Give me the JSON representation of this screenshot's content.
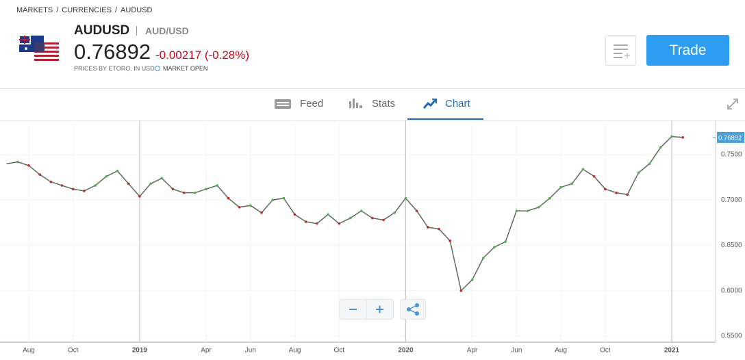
{
  "breadcrumb": [
    "MARKETS",
    "/",
    "CURRENCIES",
    "/",
    "AUDUSD"
  ],
  "header": {
    "symbol": "AUDUSD",
    "name": "AUD/USD",
    "price": "0.76892",
    "change": "-0.00217 (-0.28%)",
    "source": "PRICES BY ETORO, IN USD",
    "status": "MARKET OPEN",
    "trade_button": "Trade"
  },
  "tabs": [
    "Feed",
    "Stats",
    "Chart"
  ],
  "chart_data": {
    "type": "line",
    "color": "#5b6b5b",
    "current_value": 0.76892,
    "categories": [
      "",
      "",
      "Aug",
      "",
      "",
      "",
      "Oct",
      "",
      "",
      "",
      "",
      "",
      "2019",
      "",
      "",
      "",
      "",
      "",
      "Apr",
      "",
      "",
      "",
      "Jun",
      "",
      "",
      "",
      "Aug",
      "",
      "",
      "",
      "Oct",
      "",
      "",
      "",
      "",
      "",
      "2020",
      "",
      "",
      "",
      "",
      "",
      "Apr",
      "",
      "",
      "",
      "Jun",
      "",
      "",
      "",
      "Aug",
      "",
      "",
      "",
      "Oct",
      "",
      "",
      "",
      "",
      "",
      "2021",
      ""
    ],
    "values": [
      0.74,
      0.742,
      0.738,
      0.728,
      0.72,
      0.716,
      0.712,
      0.71,
      0.716,
      0.726,
      0.732,
      0.718,
      0.704,
      0.718,
      0.724,
      0.712,
      0.708,
      0.708,
      0.712,
      0.716,
      0.702,
      0.692,
      0.694,
      0.686,
      0.7,
      0.702,
      0.684,
      0.676,
      0.674,
      0.684,
      0.674,
      0.68,
      0.688,
      0.68,
      0.678,
      0.686,
      0.702,
      0.688,
      0.67,
      0.668,
      0.655,
      0.6,
      0.612,
      0.636,
      0.648,
      0.654,
      0.688,
      0.688,
      0.692,
      0.702,
      0.714,
      0.718,
      0.734,
      0.726,
      0.712,
      0.708,
      0.706,
      0.73,
      0.74,
      0.758,
      0.77,
      0.769
    ],
    "ylim": [
      0.5432,
      0.7877
    ],
    "yticks": [
      {
        "value": 0.55,
        "label": "0.5500"
      },
      {
        "value": 0.6,
        "label": "0.6000"
      },
      {
        "value": 0.65,
        "label": "0.6500"
      },
      {
        "value": 0.7,
        "label": "0.7000"
      },
      {
        "value": 0.75,
        "label": "0.7500"
      }
    ],
    "grid": true
  }
}
